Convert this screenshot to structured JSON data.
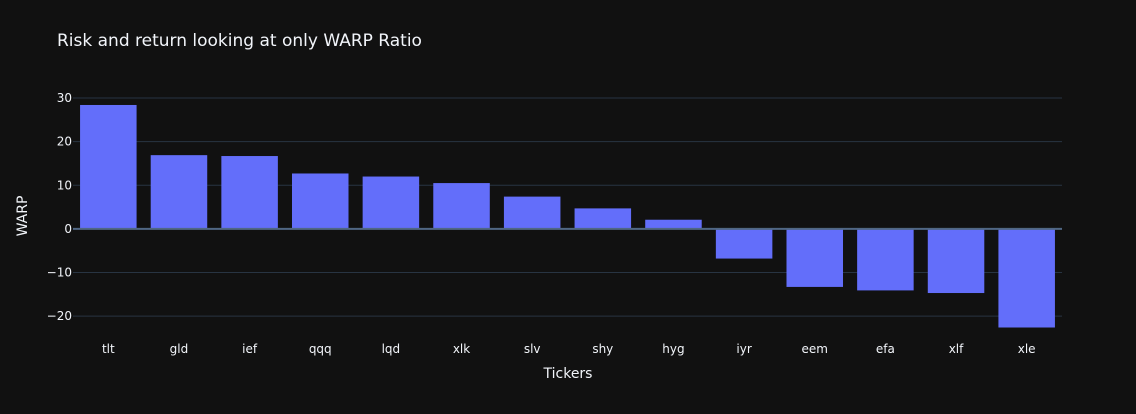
{
  "chart_data": {
    "type": "bar",
    "title": "Risk and return looking at only WARP Ratio",
    "xlabel": "Tickers",
    "ylabel": "WARP",
    "categories": [
      "tlt",
      "gld",
      "ief",
      "qqq",
      "lqd",
      "xlk",
      "slv",
      "shy",
      "hyg",
      "iyr",
      "eem",
      "efa",
      "xlf",
      "xle"
    ],
    "values": [
      28.4,
      16.9,
      16.7,
      12.7,
      12.0,
      10.5,
      7.4,
      4.7,
      2.1,
      -6.8,
      -13.3,
      -14.1,
      -14.7,
      -22.6
    ],
    "ylim": [
      -22.6,
      30
    ],
    "yticks": [
      -20,
      -10,
      0,
      10,
      20,
      30
    ],
    "ytick_labels": [
      "−20",
      "−10",
      "0",
      "10",
      "20",
      "30"
    ],
    "bar_color": "#636efa",
    "background": "#111111",
    "grid": true
  }
}
